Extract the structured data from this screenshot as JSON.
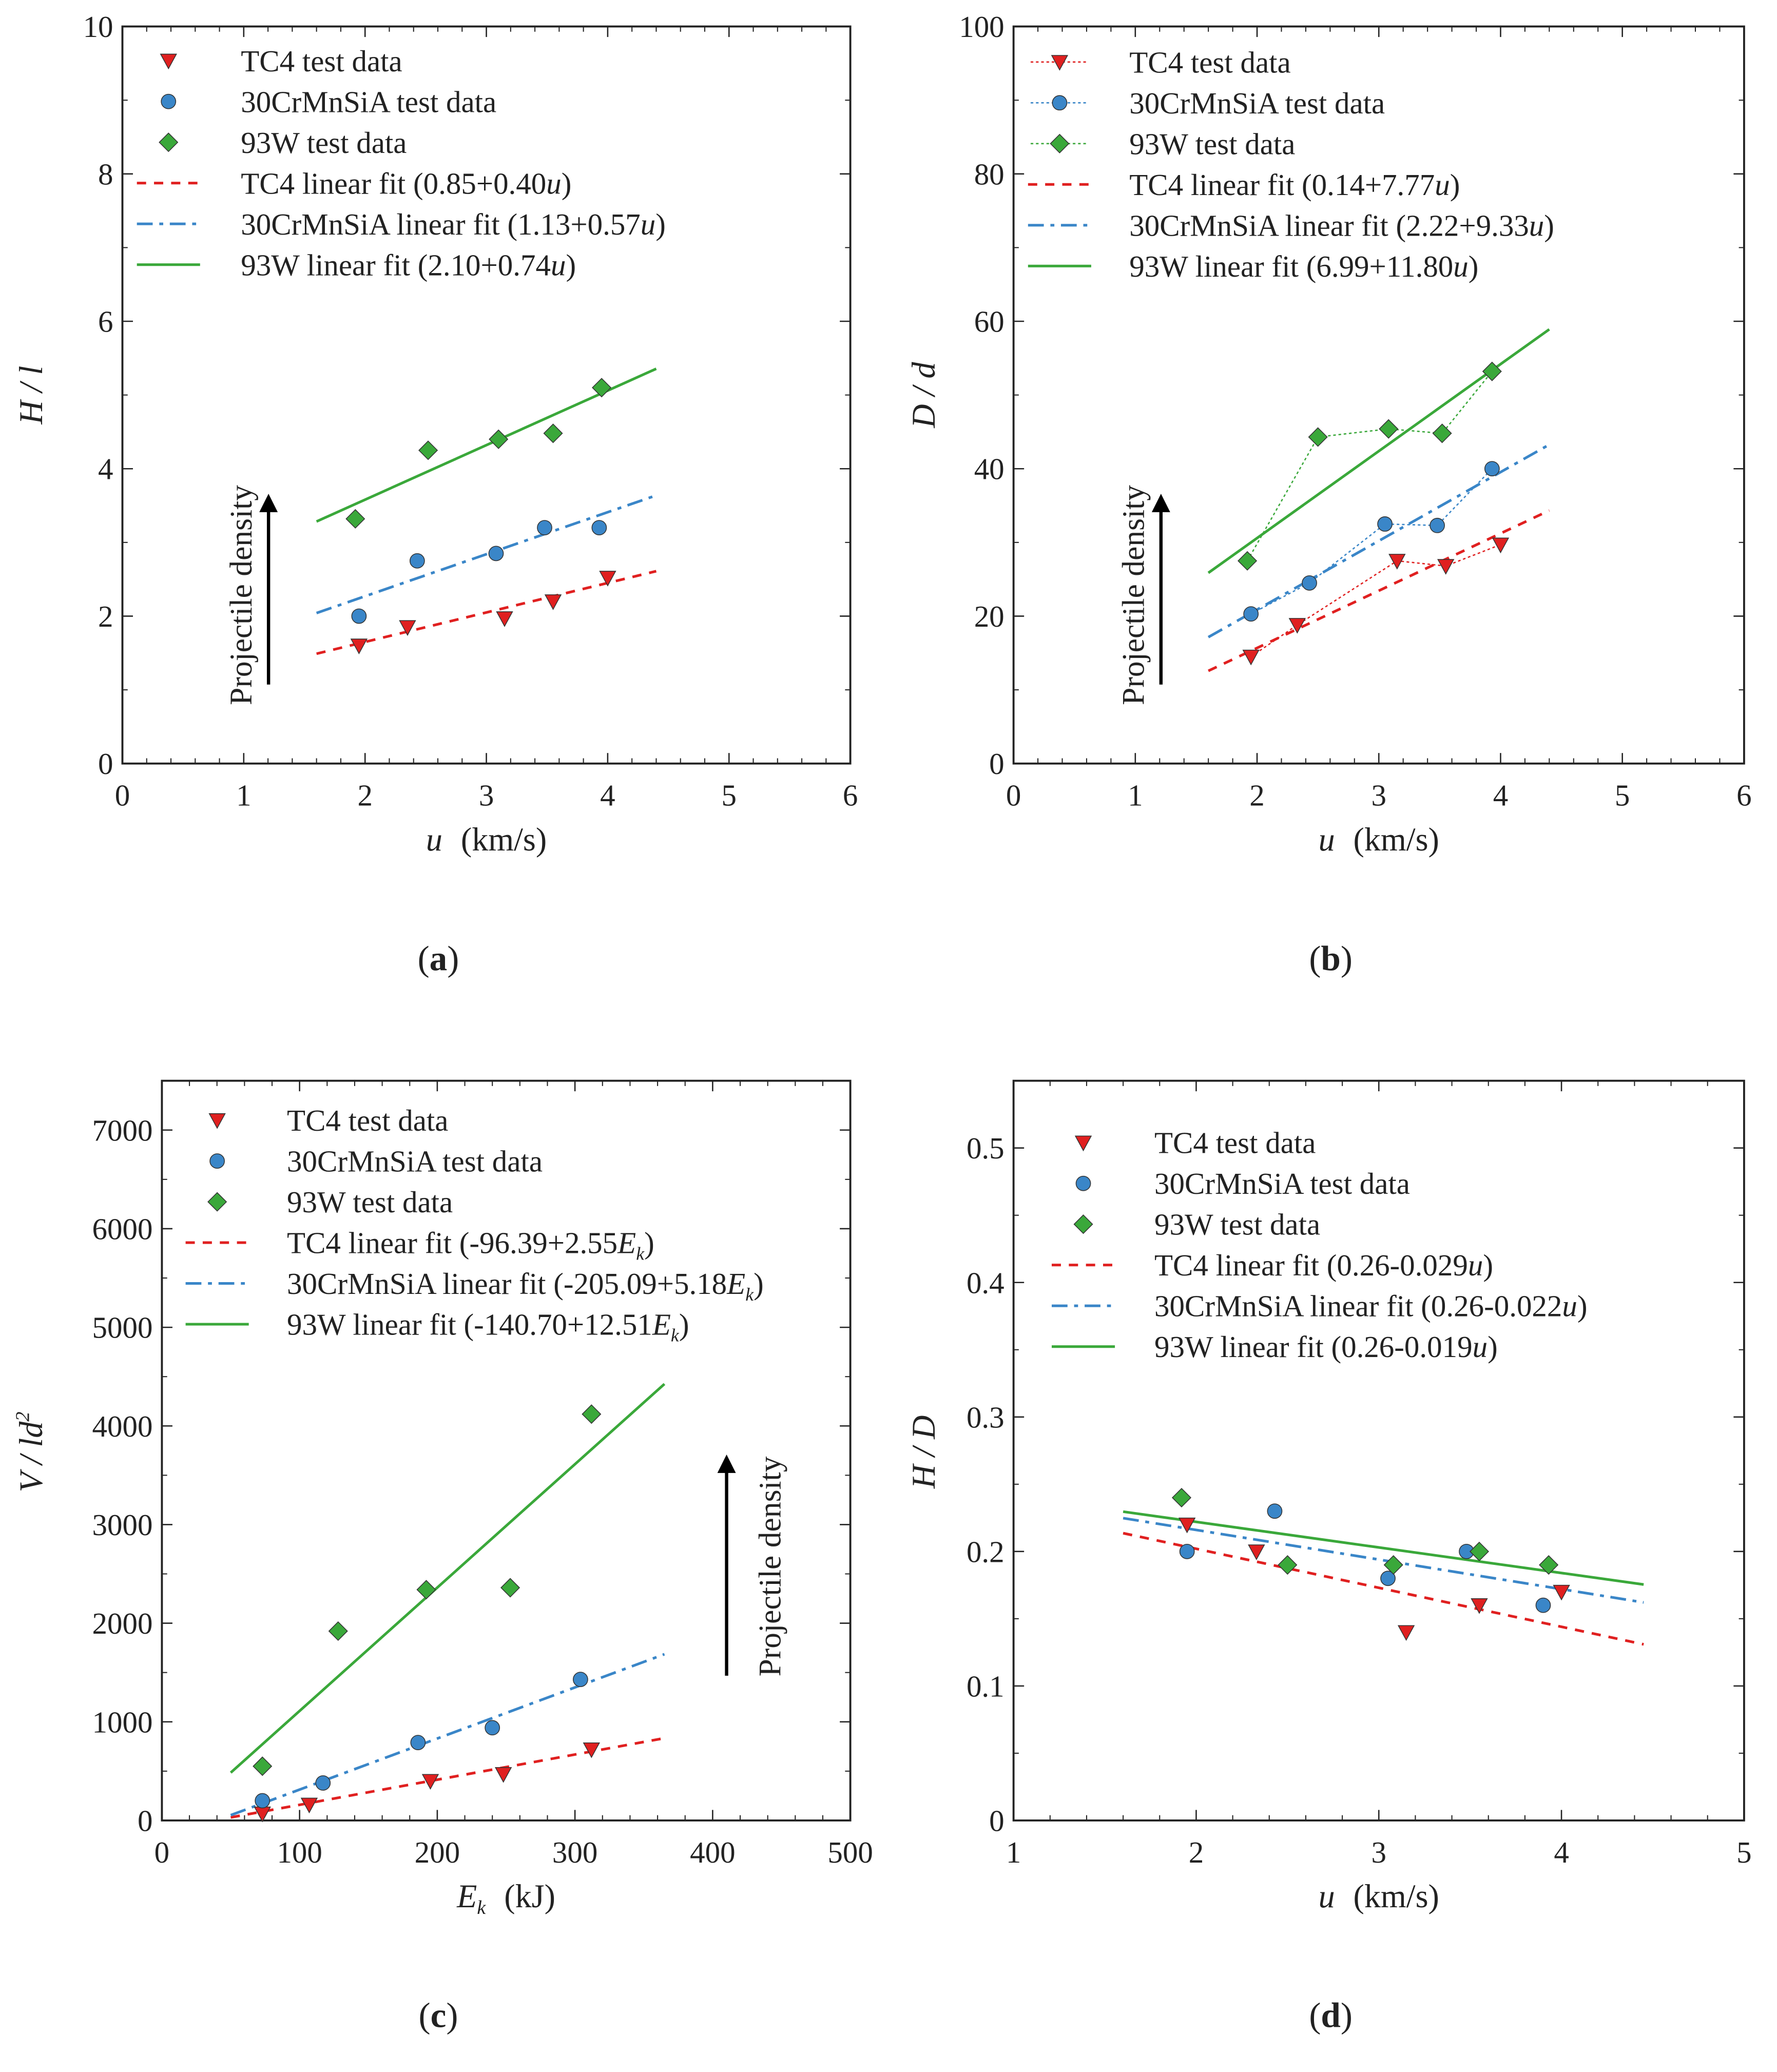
{
  "colors": {
    "tc4": "#e02020",
    "cr": "#3a86c8",
    "w": "#3aa83a",
    "axis": "#222222"
  },
  "chart_data": [
    {
      "id": "a",
      "type": "scatter",
      "caption_letter": "a",
      "xlabel": {
        "var": "u",
        "sub": "",
        "unit": "(km/s)"
      },
      "ylabel": {
        "text": "H / l",
        "sup": ""
      },
      "xlim": [
        0,
        6
      ],
      "ylim": [
        0,
        10
      ],
      "xticks": [
        0,
        1,
        2,
        3,
        4,
        5,
        6
      ],
      "yticks": [
        0,
        2,
        4,
        6,
        8,
        10
      ],
      "annotation": "Projectile density",
      "connect_points": false,
      "fit_range": [
        1.6,
        4.4
      ],
      "series": [
        {
          "key": "tc4",
          "marker": "triangle",
          "legend_data": "TC4 test data",
          "legend_fit": {
            "text": "TC4 linear fit (0.85+0.40",
            "var": "u",
            "sub": "",
            "tail": ")"
          },
          "fit": [
            0.85,
            0.4
          ],
          "fit_style": "dash",
          "x": [
            1.95,
            2.35,
            3.15,
            3.55,
            4.0
          ],
          "y": [
            1.6,
            1.85,
            1.97,
            2.2,
            2.52
          ]
        },
        {
          "key": "cr",
          "marker": "circle",
          "legend_data": "30CrMnSiA test data",
          "legend_fit": {
            "text": "30CrMnSiA linear fit (1.13+0.57",
            "var": "u",
            "sub": "",
            "tail": ")"
          },
          "fit": [
            1.13,
            0.57
          ],
          "fit_style": "dashdot",
          "x": [
            1.95,
            2.43,
            3.08,
            3.48,
            3.93
          ],
          "y": [
            2.0,
            2.75,
            2.85,
            3.2,
            3.2
          ]
        },
        {
          "key": "w",
          "marker": "diamond",
          "legend_data": "93W test data",
          "legend_fit": {
            "text": "93W linear fit (2.10+0.74",
            "var": "u",
            "sub": "",
            "tail": ")"
          },
          "fit": [
            2.1,
            0.74
          ],
          "fit_style": "solid",
          "x": [
            1.92,
            2.52,
            3.1,
            3.55,
            3.95
          ],
          "y": [
            3.32,
            4.25,
            4.4,
            4.48,
            5.1
          ]
        }
      ]
    },
    {
      "id": "b",
      "type": "scatter",
      "caption_letter": "b",
      "xlabel": {
        "var": "u",
        "sub": "",
        "unit": "(km/s)"
      },
      "ylabel": {
        "text": "D / d",
        "sup": ""
      },
      "xlim": [
        0,
        6
      ],
      "ylim": [
        0,
        100
      ],
      "xticks": [
        0,
        1,
        2,
        3,
        4,
        5,
        6
      ],
      "yticks": [
        0,
        20,
        40,
        60,
        80,
        100
      ],
      "annotation": "Projectile density",
      "connect_points": true,
      "fit_range": [
        1.6,
        4.4
      ],
      "series": [
        {
          "key": "tc4",
          "marker": "triangle",
          "legend_data": "TC4 test data",
          "legend_fit": {
            "text": "TC4 linear fit (0.14+7.77",
            "var": "u",
            "sub": "",
            "tail": ")"
          },
          "fit": [
            0.14,
            7.77
          ],
          "fit_style": "dash",
          "x": [
            1.95,
            2.33,
            3.15,
            3.55,
            4.0
          ],
          "y": [
            14.5,
            18.8,
            27.5,
            26.8,
            29.7
          ]
        },
        {
          "key": "cr",
          "marker": "circle",
          "legend_data": "30CrMnSiA test data",
          "legend_fit": {
            "text": "30CrMnSiA linear fit (2.22+9.33",
            "var": "u",
            "sub": "",
            "tail": ")"
          },
          "fit": [
            2.22,
            9.33
          ],
          "fit_style": "dashdot",
          "x": [
            1.95,
            2.43,
            3.05,
            3.48,
            3.93
          ],
          "y": [
            20.3,
            24.5,
            32.5,
            32.3,
            40.0
          ]
        },
        {
          "key": "w",
          "marker": "diamond",
          "legend_data": "93W test data",
          "legend_fit": {
            "text": "93W linear fit (6.99+11.80",
            "var": "u",
            "sub": "",
            "tail": ")"
          },
          "fit": [
            6.99,
            11.8
          ],
          "fit_style": "solid",
          "x": [
            1.92,
            2.5,
            3.08,
            3.52,
            3.93
          ],
          "y": [
            27.5,
            44.3,
            45.4,
            44.8,
            53.2
          ]
        }
      ]
    },
    {
      "id": "c",
      "type": "scatter",
      "caption_letter": "c",
      "xlabel": {
        "var": "E",
        "sub": "k",
        "unit": "(kJ)"
      },
      "ylabel": {
        "text": "V / ld",
        "sup": "2"
      },
      "xlim": [
        0,
        500
      ],
      "ylim": [
        0,
        7500
      ],
      "xticks": [
        0,
        100,
        200,
        300,
        400,
        500
      ],
      "yticks": [
        0,
        1000,
        2000,
        3000,
        4000,
        5000,
        6000,
        7000
      ],
      "annotation": "Projectile density",
      "connect_points": false,
      "fit_range": [
        50,
        365
      ],
      "series": [
        {
          "key": "tc4",
          "marker": "triangle",
          "legend_data": "TC4 test data",
          "legend_fit": {
            "text": "TC4 linear fit (-96.39+2.55",
            "var": "E",
            "sub": "k",
            "tail": ")"
          },
          "fit": [
            -96.39,
            2.55
          ],
          "fit_style": "dash",
          "x": [
            73,
            107,
            195,
            248,
            312
          ],
          "y": [
            70,
            160,
            400,
            470,
            720
          ]
        },
        {
          "key": "cr",
          "marker": "circle",
          "legend_data": "30CrMnSiA test data",
          "legend_fit": {
            "text": "30CrMnSiA linear fit (-205.09+5.18",
            "var": "E",
            "sub": "k",
            "tail": ")"
          },
          "fit": [
            -205.09,
            5.18
          ],
          "fit_style": "dashdot",
          "x": [
            73,
            117,
            186,
            240,
            304
          ],
          "y": [
            200,
            380,
            790,
            940,
            1430
          ]
        },
        {
          "key": "w",
          "marker": "diamond",
          "legend_data": "93W test data",
          "legend_fit": {
            "text": "93W linear fit (-140.70+12.51",
            "var": "E",
            "sub": "k",
            "tail": ")"
          },
          "fit": [
            -140.7,
            12.51
          ],
          "fit_style": "solid",
          "x": [
            73,
            128,
            192,
            253,
            312
          ],
          "y": [
            550,
            1920,
            2340,
            2360,
            4120
          ]
        }
      ]
    },
    {
      "id": "d",
      "type": "scatter",
      "caption_letter": "d",
      "xlabel": {
        "var": "u",
        "sub": "",
        "unit": "(km/s)"
      },
      "ylabel": {
        "text": "H / D",
        "sup": ""
      },
      "xlim": [
        1,
        5
      ],
      "ylim": [
        0,
        0.55
      ],
      "xticks": [
        1,
        2,
        3,
        4,
        5
      ],
      "yticks": [
        0,
        0.1,
        0.2,
        0.3,
        0.4,
        0.5
      ],
      "annotation": "",
      "connect_points": false,
      "fit_range": [
        1.6,
        4.45
      ],
      "series": [
        {
          "key": "tc4",
          "marker": "triangle",
          "legend_data": "TC4 test data",
          "legend_fit": {
            "text": "TC4 linear fit (0.26-0.029",
            "var": "u",
            "sub": "",
            "tail": ")"
          },
          "fit": [
            0.26,
            -0.029
          ],
          "fit_style": "dash",
          "x": [
            1.95,
            2.33,
            3.15,
            3.55,
            4.0
          ],
          "y": [
            0.22,
            0.2,
            0.14,
            0.16,
            0.17
          ]
        },
        {
          "key": "cr",
          "marker": "circle",
          "legend_data": "30CrMnSiA test data",
          "legend_fit": {
            "text": "30CrMnSiA linear fit (0.26-0.022",
            "var": "u",
            "sub": "",
            "tail": ")"
          },
          "fit": [
            0.26,
            -0.022
          ],
          "fit_style": "dashdot",
          "x": [
            1.95,
            2.43,
            3.05,
            3.48,
            3.9
          ],
          "y": [
            0.2,
            0.23,
            0.18,
            0.2,
            0.16
          ]
        },
        {
          "key": "w",
          "marker": "diamond",
          "legend_data": "93W test data",
          "legend_fit": {
            "text": "93W linear fit (0.26-0.019",
            "var": "u",
            "sub": "",
            "tail": ")"
          },
          "fit": [
            0.26,
            -0.019
          ],
          "fit_style": "solid",
          "x": [
            1.92,
            2.5,
            3.08,
            3.55,
            3.93
          ],
          "y": [
            0.24,
            0.19,
            0.19,
            0.2,
            0.19
          ]
        }
      ]
    }
  ]
}
